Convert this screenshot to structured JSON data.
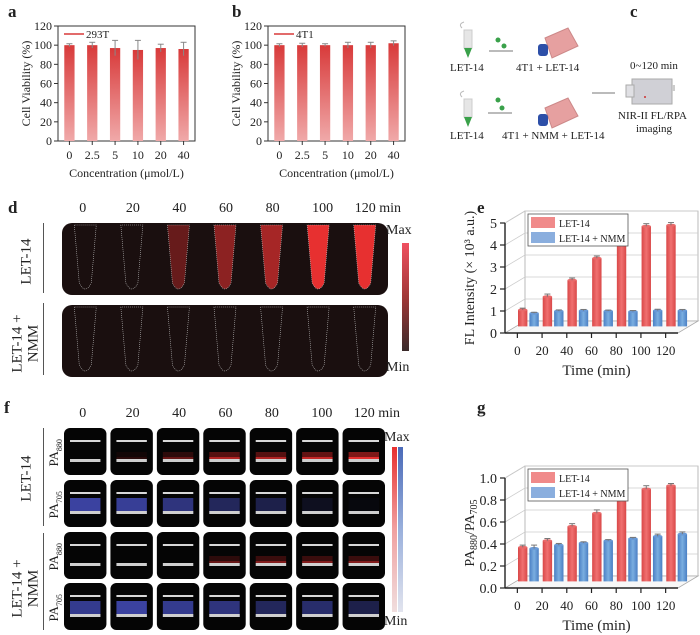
{
  "panels": {
    "a": "a",
    "b": "b",
    "c": "c",
    "d": "d",
    "e": "e",
    "f": "f",
    "g": "g"
  },
  "colors": {
    "red_bar_top": "#d83a3a",
    "red_bar_bottom": "#f0a9a9",
    "red_series": "#e85a5a",
    "blue_series": "#5b8fd0",
    "error_bar": "#888888",
    "fl_max": "#ef4040",
    "pa880_max": "#e83030",
    "pa705_max": "#4a6ab8"
  },
  "chart_data": [
    {
      "id": "a",
      "type": "bar",
      "title": "",
      "legend": [
        "293T"
      ],
      "legend_position": "top-left",
      "categories": [
        "0",
        "2.5",
        "5",
        "10",
        "20",
        "40"
      ],
      "values": [
        100,
        100,
        97,
        95,
        97,
        96
      ],
      "errors": [
        1.5,
        3,
        8,
        10,
        4,
        7
      ],
      "xlabel": "Concentration (μmol/L)",
      "ylabel": "Cell Viability (%)",
      "ylim": [
        0,
        120
      ],
      "yticks": [
        0,
        20,
        40,
        60,
        80,
        100,
        120
      ]
    },
    {
      "id": "b",
      "type": "bar",
      "title": "",
      "legend": [
        "4T1"
      ],
      "legend_position": "top-left",
      "categories": [
        "0",
        "2.5",
        "5",
        "10",
        "20",
        "40"
      ],
      "values": [
        100,
        100,
        100,
        100,
        100,
        102
      ],
      "errors": [
        1.5,
        2,
        1.5,
        3,
        3,
        2.5
      ],
      "xlabel": "Concentration (μmol/L)",
      "ylabel": "Cell Viability (%)",
      "ylim": [
        0,
        120
      ],
      "yticks": [
        0,
        20,
        40,
        60,
        80,
        100,
        120
      ]
    },
    {
      "id": "e",
      "type": "bar",
      "title": "",
      "legend_position": "top-left",
      "categories": [
        "0",
        "20",
        "40",
        "60",
        "80",
        "100",
        "120"
      ],
      "series": [
        {
          "name": "LET-14",
          "values": [
            0.75,
            1.35,
            2.1,
            3.1,
            3.9,
            4.55,
            4.6
          ],
          "errors": [
            0.08,
            0.12,
            0.1,
            0.1,
            0.12,
            0.12,
            0.12
          ]
        },
        {
          "name": "LET-14 + NMM",
          "values": [
            0.6,
            0.7,
            0.72,
            0.7,
            0.68,
            0.72,
            0.72
          ],
          "errors": [
            0.04,
            0.05,
            0.05,
            0.04,
            0.04,
            0.06,
            0.05
          ]
        }
      ],
      "xlabel": "Time (min)",
      "ylabel": "FL Intensity (× 10³ a.u.)",
      "ylim": [
        0,
        5
      ],
      "yticks": [
        0,
        1,
        2,
        3,
        4,
        5
      ],
      "grid": true
    },
    {
      "id": "g",
      "type": "bar",
      "title": "",
      "legend_position": "top-left",
      "categories": [
        "0",
        "20",
        "40",
        "60",
        "80",
        "100",
        "120"
      ],
      "series": [
        {
          "name": "LET-14",
          "values": [
            0.31,
            0.37,
            0.5,
            0.62,
            0.75,
            0.84,
            0.87
          ],
          "errors": [
            0.02,
            0.02,
            0.025,
            0.03,
            0.03,
            0.03,
            0.02
          ]
        },
        {
          "name": "LET-14 + NMM",
          "values": [
            0.3,
            0.33,
            0.35,
            0.37,
            0.39,
            0.41,
            0.43
          ],
          "errors": [
            0.03,
            0.015,
            0.01,
            0.01,
            0.01,
            0.02,
            0.02
          ]
        }
      ],
      "xlabel": "Time (min)",
      "ylabel": "PA880/PA705",
      "ylim": [
        0,
        1.0
      ],
      "yticks": [
        "0.0",
        "0.2",
        "0.4",
        "0.6",
        "0.8",
        "1.0"
      ],
      "grid": true
    }
  ],
  "schematic_c": {
    "row1_left": "LET-14",
    "row1_right": "4T1 + LET-14",
    "row2_left": "LET-14",
    "row2_right": "4T1 + NMM + LET-14",
    "time": "0~120 min",
    "imaging_line1": "NIR-II FL/RPA",
    "imaging_line2": "imaging"
  },
  "panel_d": {
    "times": [
      "0",
      "20",
      "40",
      "60",
      "80",
      "100",
      "120 min"
    ],
    "rows": [
      "LET-14",
      "LET-14 + NMM"
    ],
    "row_label_line1": [
      "LET-14",
      "LET-14 +"
    ],
    "row_label_line2": [
      "",
      "NMM"
    ],
    "intensity": [
      [
        0,
        0,
        0.25,
        0.45,
        0.6,
        0.95,
        0.95
      ],
      [
        0,
        0,
        0,
        0,
        0,
        0,
        0
      ]
    ],
    "colorbar_max": "Max",
    "colorbar_min": "Min"
  },
  "panel_f": {
    "times": [
      "0",
      "20",
      "40",
      "60",
      "80",
      "100",
      "120 min"
    ],
    "groups": [
      "LET-14",
      "LET-14 + NMM"
    ],
    "group_label_line1": [
      "LET-14",
      "LET-14 +"
    ],
    "group_label_line2": [
      "",
      "NMM"
    ],
    "channels": [
      {
        "base": "PA",
        "sub": "880"
      },
      {
        "base": "PA",
        "sub": "705"
      }
    ],
    "pa880_intensity": [
      [
        0,
        0.1,
        0.3,
        0.6,
        0.6,
        0.7,
        0.9
      ],
      [
        0,
        0,
        0,
        0.3,
        0.4,
        0.4,
        0.4
      ]
    ],
    "pa705_intensity": [
      [
        0.9,
        0.85,
        0.7,
        0.5,
        0.4,
        0.15,
        0.05
      ],
      [
        0.8,
        0.9,
        0.8,
        0.7,
        0.5,
        0.6,
        0.4
      ]
    ],
    "colorbar_max": "Max",
    "colorbar_min": "Min"
  }
}
